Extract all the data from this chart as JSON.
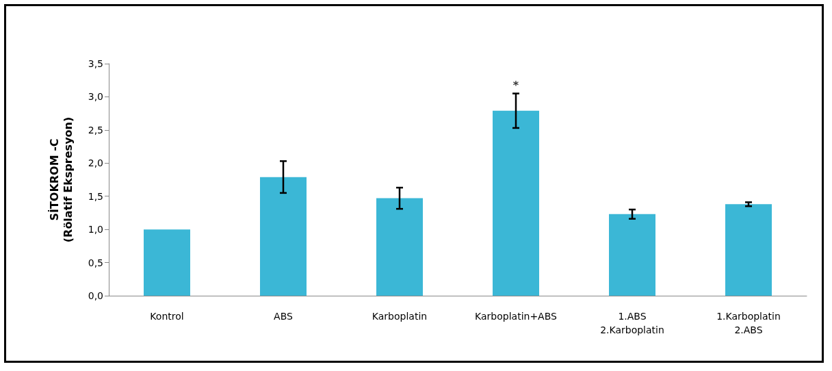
{
  "chart_data": {
    "type": "bar",
    "ylabel": "SİTOKROM -C\n(Rölatif Ekspresyon)",
    "categories": [
      "Kontrol",
      "ABS",
      "Karboplatin",
      "Karboplatin+ABS",
      "1.ABS\n2.Karboplatin",
      "1.Karboplatin\n2.ABS"
    ],
    "values": [
      1.0,
      1.79,
      1.47,
      2.79,
      1.23,
      1.38
    ],
    "errors": [
      null,
      0.24,
      0.16,
      0.26,
      0.07,
      0.03
    ],
    "color": "#3bb7d6",
    "ylim": [
      0,
      3.5
    ],
    "yticks": [
      {
        "value": 0,
        "label": "0,0"
      },
      {
        "value": 0.5,
        "label": "0,5"
      },
      {
        "value": 1,
        "label": "1,0"
      },
      {
        "value": 1.5,
        "label": "1,5"
      },
      {
        "value": 2,
        "label": "2,0"
      },
      {
        "value": 2.5,
        "label": "2,5"
      },
      {
        "value": 3,
        "label": "3,0"
      },
      {
        "value": 3.5,
        "label": "3,5"
      }
    ],
    "grid": false,
    "annotations": [
      {
        "text": "*",
        "x": "Karboplatin+ABS",
        "y": 3.05
      }
    ]
  }
}
